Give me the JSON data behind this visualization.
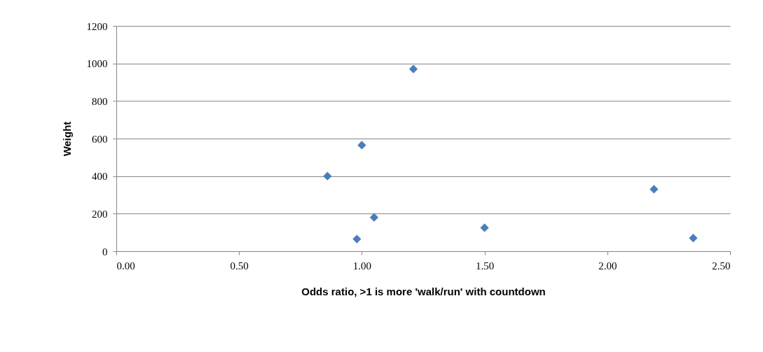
{
  "chart_data": {
    "type": "scatter",
    "xlabel": "Odds ratio, >1 is more 'walk/run' with countdown",
    "ylabel": "Weight",
    "x": [
      0.86,
      1.0,
      0.98,
      1.05,
      1.21,
      1.5,
      2.19,
      2.35
    ],
    "values": [
      400,
      565,
      65,
      180,
      970,
      125,
      330,
      70
    ],
    "color": "#4a7ebb",
    "marker": "diamond",
    "grid": "y",
    "xlim": [
      0,
      2.5
    ],
    "xticks": [
      {
        "value": 0,
        "label": "0.00"
      },
      {
        "value": 0.5,
        "label": "0.50"
      },
      {
        "value": 1,
        "label": "1.00"
      },
      {
        "value": 1.5,
        "label": "1.50"
      },
      {
        "value": 2,
        "label": "2.00"
      },
      {
        "value": 2.5,
        "label": "2.50"
      }
    ],
    "ylim": [
      0,
      1200
    ],
    "yticks": [
      0,
      200,
      400,
      600,
      800,
      1000,
      1200
    ]
  }
}
